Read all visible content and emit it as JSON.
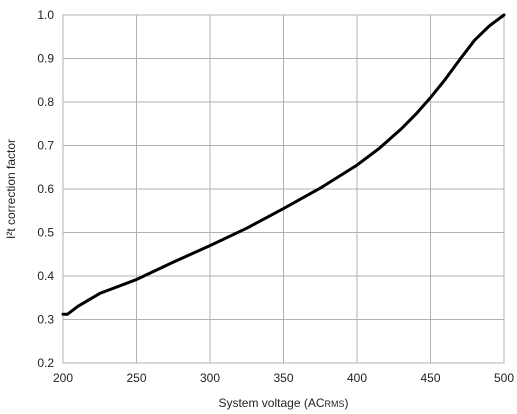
{
  "chart_data": {
    "type": "line",
    "title": "",
    "xlabel_main": "System voltage (AC",
    "xlabel_sub": "RMS",
    "xlabel_close": ")",
    "ylabel": "I²t correction factor",
    "xlim": [
      200,
      500
    ],
    "ylim": [
      0.2,
      1.0
    ],
    "xticks": [
      200,
      250,
      300,
      350,
      400,
      450,
      500
    ],
    "yticks": [
      0.2,
      0.3,
      0.4,
      0.5,
      0.6,
      0.7,
      0.8,
      0.9,
      1.0
    ],
    "ytick_labels": [
      "0.2",
      "0.3",
      "0.4",
      "0.5",
      "0.6",
      "0.7",
      "0.8",
      "0.9",
      "1.0"
    ],
    "grid": true,
    "line_color": "#000000",
    "grid_color": "#b3b3b3",
    "series": [
      {
        "x": [
          200,
          203,
          210,
          225,
          250,
          275,
          300,
          325,
          350,
          375,
          400,
          415,
          430,
          440,
          450,
          460,
          470,
          480,
          490,
          500
        ],
        "y": [
          0.312,
          0.312,
          0.33,
          0.36,
          0.392,
          0.432,
          0.47,
          0.51,
          0.555,
          0.602,
          0.655,
          0.693,
          0.738,
          0.772,
          0.81,
          0.852,
          0.898,
          0.942,
          0.975,
          1.0
        ]
      }
    ]
  }
}
